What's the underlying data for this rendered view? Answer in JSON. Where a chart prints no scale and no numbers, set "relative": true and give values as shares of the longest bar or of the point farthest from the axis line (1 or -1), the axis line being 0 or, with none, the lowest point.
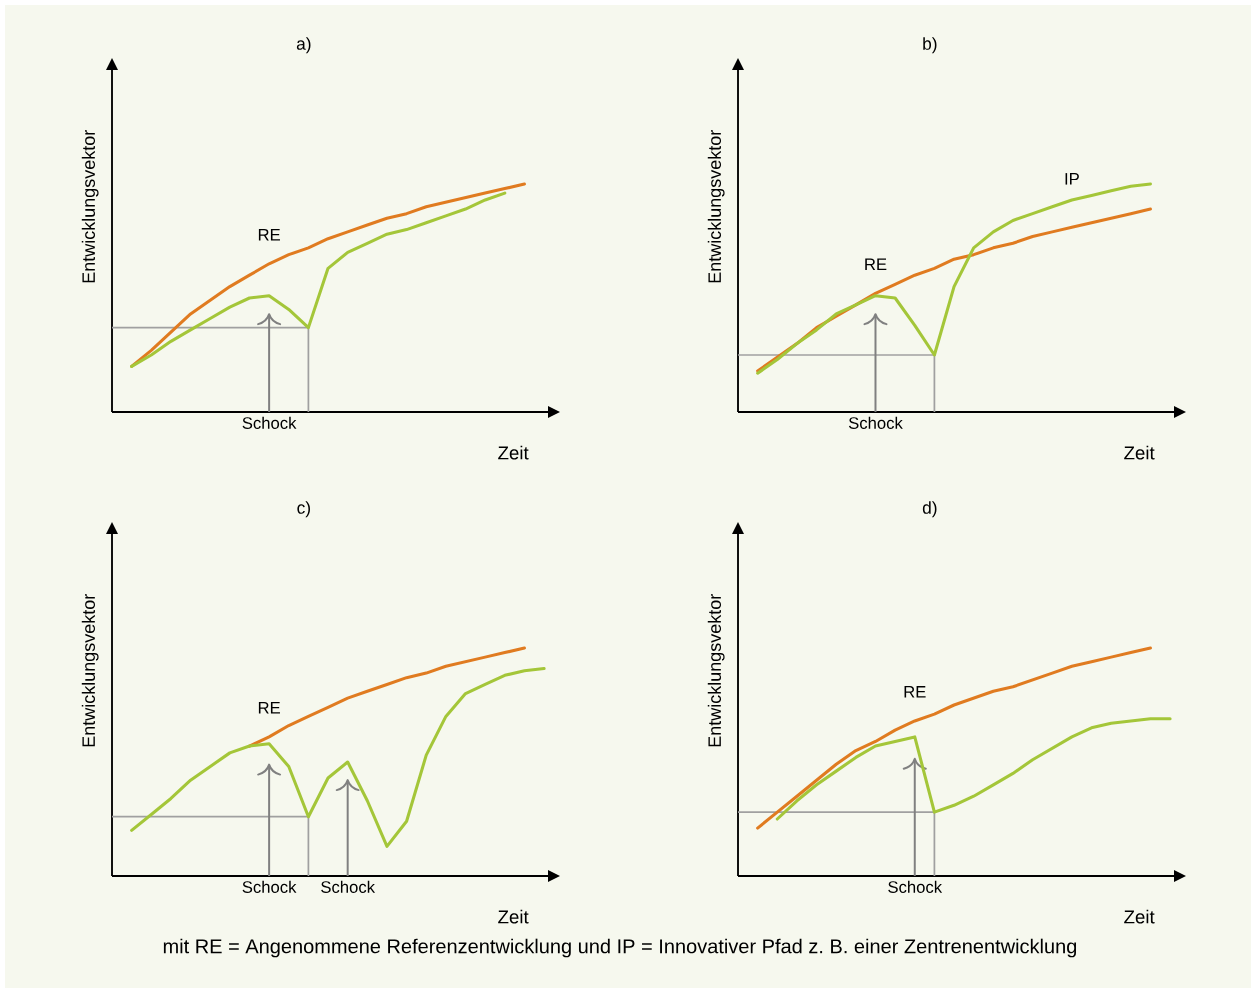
{
  "chart_data": [
    {
      "type": "line",
      "relative": true,
      "title": "a)",
      "xlabel": "Zeit",
      "ylabel": "Entwicklungsvektor",
      "categories": [
        null,
        null,
        null,
        null,
        null,
        null,
        null,
        null,
        null,
        null,
        null,
        null,
        null,
        null,
        null,
        null,
        null,
        null,
        null,
        null,
        null,
        null
      ],
      "series": [
        {
          "name": "RE",
          "color": "#e07b20",
          "values": [
            0.2,
            0.27,
            0.35,
            0.43,
            0.49,
            0.55,
            0.6,
            0.65,
            0.69,
            0.72,
            0.76,
            0.79,
            0.82,
            0.85,
            0.87,
            0.9,
            0.92,
            0.94,
            0.96,
            0.98,
            1.0,
            null
          ]
        },
        {
          "color": "#a4c639",
          "values": [
            0.2,
            0.25,
            0.31,
            0.36,
            0.41,
            0.46,
            0.5,
            0.51,
            0.45,
            0.37,
            0.63,
            0.7,
            0.74,
            0.78,
            0.8,
            0.83,
            0.86,
            0.89,
            0.93,
            0.96,
            null,
            null
          ]
        }
      ],
      "ref_lines": [
        {
          "axis": "y",
          "value": 0.37,
          "color": "#a0a0a0"
        }
      ],
      "annotations": [
        "Schock"
      ]
    },
    {
      "type": "line",
      "relative": true,
      "title": "b)",
      "xlabel": "Zeit",
      "ylabel": "Entwicklungsvektor",
      "categories": [
        null,
        null,
        null,
        null,
        null,
        null,
        null,
        null,
        null,
        null,
        null,
        null,
        null,
        null,
        null,
        null,
        null,
        null,
        null,
        null,
        null
      ],
      "series": [
        {
          "name": "RE",
          "color": "#e07b20",
          "values": [
            0.18,
            0.24,
            0.3,
            0.37,
            0.42,
            0.47,
            0.52,
            0.56,
            0.6,
            0.63,
            0.67,
            0.69,
            0.72,
            0.74,
            0.77,
            0.79,
            0.81,
            0.83,
            0.85,
            0.87,
            0.89
          ]
        },
        {
          "name": "IP",
          "color": "#a4c639",
          "values": [
            0.17,
            0.23,
            0.3,
            0.36,
            0.43,
            0.47,
            0.51,
            0.5,
            0.38,
            0.25,
            0.55,
            0.72,
            0.79,
            0.84,
            0.87,
            0.9,
            0.93,
            0.95,
            0.97,
            0.99,
            1.0
          ]
        }
      ],
      "ref_lines": [
        {
          "axis": "y",
          "value": 0.25,
          "color": "#a0a0a0"
        }
      ],
      "annotations": [
        "Schock"
      ]
    },
    {
      "type": "line",
      "relative": true,
      "title": "c)",
      "xlabel": "Zeit",
      "ylabel": "Entwicklungsvektor",
      "categories": [
        null,
        null,
        null,
        null,
        null,
        null,
        null,
        null,
        null,
        null,
        null,
        null,
        null,
        null,
        null,
        null,
        null,
        null,
        null,
        null,
        null,
        null
      ],
      "series": [
        {
          "name": "RE",
          "color": "#e07b20",
          "values": [
            null,
            null,
            null,
            null,
            null,
            null,
            0.57,
            0.61,
            0.66,
            0.7,
            0.74,
            0.78,
            0.81,
            0.84,
            0.87,
            0.89,
            0.92,
            0.94,
            0.96,
            0.98,
            1.0,
            null
          ]
        },
        {
          "color": "#a4c639",
          "values": [
            0.2,
            0.27,
            0.34,
            0.42,
            0.48,
            0.54,
            0.57,
            0.58,
            0.48,
            0.26,
            0.43,
            0.5,
            0.33,
            0.13,
            0.24,
            0.53,
            0.7,
            0.8,
            0.84,
            0.88,
            0.9,
            0.91
          ]
        }
      ],
      "ref_lines": [
        {
          "axis": "y",
          "value": 0.26,
          "color": "#a0a0a0"
        }
      ],
      "annotations": [
        "Schock",
        "Schock"
      ]
    },
    {
      "type": "line",
      "relative": true,
      "title": "d)",
      "xlabel": "Zeit",
      "ylabel": "Entwicklungsvektor",
      "categories": [
        null,
        null,
        null,
        null,
        null,
        null,
        null,
        null,
        null,
        null,
        null,
        null,
        null,
        null,
        null,
        null,
        null,
        null,
        null,
        null,
        null,
        null
      ],
      "series": [
        {
          "name": "RE",
          "color": "#e07b20",
          "values": [
            0.21,
            0.28,
            0.35,
            0.42,
            0.49,
            0.55,
            0.59,
            0.64,
            0.68,
            0.71,
            0.75,
            0.78,
            0.81,
            0.83,
            0.86,
            0.89,
            0.92,
            0.94,
            0.96,
            0.98,
            1.0,
            null
          ]
        },
        {
          "color": "#a4c639",
          "values": [
            null,
            0.25,
            0.33,
            0.4,
            0.46,
            0.52,
            0.57,
            0.59,
            0.61,
            0.28,
            0.31,
            0.35,
            0.4,
            0.45,
            0.51,
            0.56,
            0.61,
            0.65,
            0.67,
            0.68,
            0.69,
            0.69
          ]
        }
      ],
      "ref_lines": [
        {
          "axis": "y",
          "value": 0.28,
          "color": "#a0a0a0"
        }
      ],
      "annotations": [
        "Schock",
        "mit RE = Angenommene Referenzentwicklung und IP = Innovativer Pfad z. B. einer Zentrenentwicklung"
      ]
    }
  ]
}
